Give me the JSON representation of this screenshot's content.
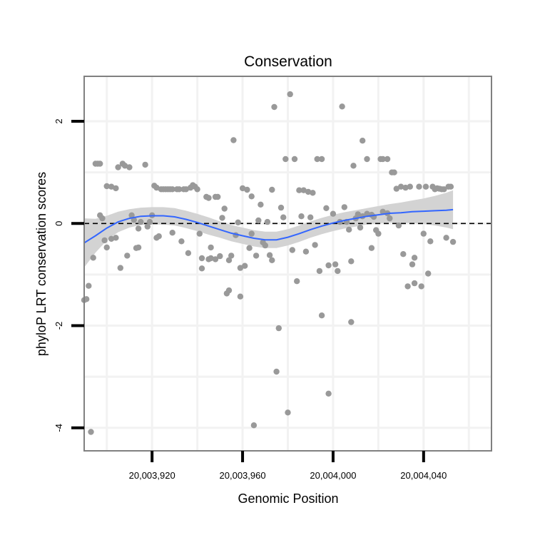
{
  "chart_data": {
    "type": "scatter",
    "title": "Conservation",
    "xlabel": "Genomic Position",
    "ylabel": "phyloP LRT conservation scores",
    "xlim": [
      20003890,
      20004070
    ],
    "ylim": [
      -4.45,
      2.88
    ],
    "x_ticks": [
      20003920,
      20003960,
      20004000,
      20004040
    ],
    "x_tick_labels": [
      "20,003,920",
      "20,003,960",
      "20,004,000",
      "20,004,040"
    ],
    "y_ticks": [
      -4,
      -2,
      0,
      2
    ],
    "y_tick_labels": [
      "-4",
      "-2",
      "0",
      "2"
    ],
    "reference_line": {
      "y": 0,
      "style": "dashed",
      "color": "#000000"
    },
    "colors": {
      "points": "#999999",
      "smooth_line": "#3366ff",
      "ribbon": "#d3d3d3",
      "panel_border": "#808080",
      "grid": "#f2f2f2"
    },
    "points": [
      [
        20003890,
        -1.5
      ],
      [
        20003891,
        -1.48
      ],
      [
        20003892,
        -1.22
      ],
      [
        20003893,
        -4.08
      ],
      [
        20003894,
        -0.67
      ],
      [
        20003895,
        1.17
      ],
      [
        20003896,
        1.17
      ],
      [
        20003897,
        1.17
      ],
      [
        20003897,
        0.16
      ],
      [
        20003898,
        0.1
      ],
      [
        20003899,
        -0.33
      ],
      [
        20003900,
        0.73
      ],
      [
        20003900,
        -0.47
      ],
      [
        20003902,
        0.72
      ],
      [
        20003902,
        -0.3
      ],
      [
        20003904,
        0.69
      ],
      [
        20003904,
        -0.28
      ],
      [
        20003905,
        1.1
      ],
      [
        20003906,
        -0.87
      ],
      [
        20003907,
        1.17
      ],
      [
        20003908,
        1.13
      ],
      [
        20003909,
        -0.63
      ],
      [
        20003910,
        1.1
      ],
      [
        20003911,
        0.16
      ],
      [
        20003912,
        0.07
      ],
      [
        20003913,
        -0.48
      ],
      [
        20003914,
        -0.47
      ],
      [
        20003914,
        -0.1
      ],
      [
        20003915,
        0.03
      ],
      [
        20003917,
        1.15
      ],
      [
        20003918,
        -0.06
      ],
      [
        20003919,
        0.03
      ],
      [
        20003920,
        0.16
      ],
      [
        20003921,
        0.74
      ],
      [
        20003922,
        0.7
      ],
      [
        20003922,
        -0.28
      ],
      [
        20003923,
        -0.25
      ],
      [
        20003924,
        0.67
      ],
      [
        20003925,
        0.67
      ],
      [
        20003926,
        0.67
      ],
      [
        20003927,
        0.67
      ],
      [
        20003928,
        0.67
      ],
      [
        20003929,
        0.67
      ],
      [
        20003929,
        -0.18
      ],
      [
        20003931,
        0.67
      ],
      [
        20003932,
        0.67
      ],
      [
        20003933,
        -0.35
      ],
      [
        20003934,
        0.67
      ],
      [
        20003935,
        0.67
      ],
      [
        20003936,
        -0.58
      ],
      [
        20003937,
        0.7
      ],
      [
        20003938,
        0.75
      ],
      [
        20003939,
        0.72
      ],
      [
        20003940,
        0.67
      ],
      [
        20003941,
        -0.2
      ],
      [
        20003942,
        -0.68
      ],
      [
        20003942,
        -0.88
      ],
      [
        20003944,
        0.52
      ],
      [
        20003945,
        0.5
      ],
      [
        20003945,
        -0.7
      ],
      [
        20003946,
        -0.47
      ],
      [
        20003946,
        -0.68
      ],
      [
        20003948,
        0.52
      ],
      [
        20003948,
        -0.7
      ],
      [
        20003949,
        0.52
      ],
      [
        20003950,
        -0.64
      ],
      [
        20003951,
        0.11
      ],
      [
        20003952,
        0.29
      ],
      [
        20003953,
        -1.37
      ],
      [
        20003954,
        -0.72
      ],
      [
        20003954,
        -1.31
      ],
      [
        20003955,
        -0.63
      ],
      [
        20003956,
        1.63
      ],
      [
        20003957,
        -0.23
      ],
      [
        20003958,
        0.02
      ],
      [
        20003959,
        -1.43
      ],
      [
        20003959,
        -0.87
      ],
      [
        20003960,
        0.69
      ],
      [
        20003961,
        -0.83
      ],
      [
        20003962,
        0.66
      ],
      [
        20003963,
        -0.48
      ],
      [
        20003964,
        -0.2
      ],
      [
        20003964,
        0.53
      ],
      [
        20003965,
        -3.95
      ],
      [
        20003966,
        -0.63
      ],
      [
        20003967,
        0.06
      ],
      [
        20003968,
        0.37
      ],
      [
        20003969,
        -0.37
      ],
      [
        20003970,
        -0.43
      ],
      [
        20003971,
        0.03
      ],
      [
        20003972,
        -0.62
      ],
      [
        20003973,
        0.66
      ],
      [
        20003973,
        -0.72
      ],
      [
        20003974,
        2.28
      ],
      [
        20003975,
        -2.9
      ],
      [
        20003976,
        -2.05
      ],
      [
        20003977,
        0.31
      ],
      [
        20003978,
        0.12
      ],
      [
        20003979,
        1.26
      ],
      [
        20003980,
        -3.7
      ],
      [
        20003981,
        2.53
      ],
      [
        20003982,
        -0.52
      ],
      [
        20003983,
        1.26
      ],
      [
        20003984,
        -1.13
      ],
      [
        20003985,
        0.65
      ],
      [
        20003986,
        0.14
      ],
      [
        20003987,
        0.65
      ],
      [
        20003988,
        -0.55
      ],
      [
        20003989,
        0.62
      ],
      [
        20003990,
        0.12
      ],
      [
        20003991,
        0.6
      ],
      [
        20003992,
        -0.42
      ],
      [
        20003993,
        1.26
      ],
      [
        20003994,
        -0.93
      ],
      [
        20003995,
        1.26
      ],
      [
        20003995,
        -1.8
      ],
      [
        20003997,
        0.3
      ],
      [
        20003998,
        -3.33
      ],
      [
        20003998,
        -0.82
      ],
      [
        20004000,
        0.19
      ],
      [
        20004001,
        -0.8
      ],
      [
        20004002,
        -0.93
      ],
      [
        20004003,
        0.03
      ],
      [
        20004004,
        2.29
      ],
      [
        20004005,
        0.32
      ],
      [
        20004006,
        0.03
      ],
      [
        20004007,
        -0.12
      ],
      [
        20004008,
        -0.74
      ],
      [
        20004008,
        -1.93
      ],
      [
        20004009,
        1.13
      ],
      [
        20004010,
        0.1
      ],
      [
        20004011,
        0.18
      ],
      [
        20004012,
        -0.08
      ],
      [
        20004013,
        1.62
      ],
      [
        20004013,
        0.14
      ],
      [
        20004015,
        0.19
      ],
      [
        20004015,
        1.26
      ],
      [
        20004017,
        -0.48
      ],
      [
        20004017,
        0.17
      ],
      [
        20004018,
        0.13
      ],
      [
        20004019,
        -0.13
      ],
      [
        20004020,
        -0.2
      ],
      [
        20004021,
        1.26
      ],
      [
        20004022,
        0.23
      ],
      [
        20004022,
        1.26
      ],
      [
        20004024,
        0.2
      ],
      [
        20004024,
        1.26
      ],
      [
        20004025,
        0.1
      ],
      [
        20004026,
        1.0
      ],
      [
        20004027,
        1.0
      ],
      [
        20004028,
        0.68
      ],
      [
        20004029,
        -0.04
      ],
      [
        20004030,
        0.72
      ],
      [
        20004031,
        -0.6
      ],
      [
        20004032,
        0.7
      ],
      [
        20004033,
        -1.23
      ],
      [
        20004034,
        0.72
      ],
      [
        20004035,
        -0.8
      ],
      [
        20004036,
        -1.17
      ],
      [
        20004036,
        -0.67
      ],
      [
        20004038,
        0.72
      ],
      [
        20004039,
        -1.23
      ],
      [
        20004040,
        -0.2
      ],
      [
        20004041,
        0.72
      ],
      [
        20004042,
        -0.98
      ],
      [
        20004043,
        -0.35
      ],
      [
        20004044,
        0.72
      ],
      [
        20004045,
        0.67
      ],
      [
        20004046,
        0.69
      ],
      [
        20004047,
        0.68
      ],
      [
        20004048,
        0.67
      ],
      [
        20004049,
        0.67
      ],
      [
        20004050,
        -0.28
      ],
      [
        20004051,
        0.72
      ],
      [
        20004052,
        0.72
      ],
      [
        20004053,
        -0.36
      ]
    ],
    "smooth_fit": [
      [
        20003890,
        -0.38
      ],
      [
        20003895,
        -0.24
      ],
      [
        20003900,
        -0.09
      ],
      [
        20003905,
        0.03
      ],
      [
        20003910,
        0.1
      ],
      [
        20003915,
        0.14
      ],
      [
        20003920,
        0.15
      ],
      [
        20003925,
        0.15
      ],
      [
        20003930,
        0.13
      ],
      [
        20003935,
        0.08
      ],
      [
        20003940,
        0.02
      ],
      [
        20003945,
        -0.05
      ],
      [
        20003950,
        -0.12
      ],
      [
        20003955,
        -0.19
      ],
      [
        20003960,
        -0.24
      ],
      [
        20003965,
        -0.29
      ],
      [
        20003970,
        -0.32
      ],
      [
        20003975,
        -0.32
      ],
      [
        20003980,
        -0.27
      ],
      [
        20003985,
        -0.2
      ],
      [
        20003990,
        -0.12
      ],
      [
        20003995,
        -0.05
      ],
      [
        20004000,
        0.01
      ],
      [
        20004005,
        0.06
      ],
      [
        20004010,
        0.1
      ],
      [
        20004015,
        0.14
      ],
      [
        20004020,
        0.17
      ],
      [
        20004025,
        0.2
      ],
      [
        20004030,
        0.21
      ],
      [
        20004035,
        0.23
      ],
      [
        20004040,
        0.24
      ],
      [
        20004045,
        0.25
      ],
      [
        20004050,
        0.26
      ],
      [
        20004053,
        0.27
      ]
    ],
    "ribbon_halfwidth": [
      0.48,
      0.33,
      0.24,
      0.2,
      0.18,
      0.17,
      0.17,
      0.17,
      0.17,
      0.17,
      0.17,
      0.17,
      0.16,
      0.16,
      0.16,
      0.16,
      0.16,
      0.16,
      0.16,
      0.16,
      0.16,
      0.16,
      0.16,
      0.16,
      0.16,
      0.16,
      0.17,
      0.18,
      0.2,
      0.22,
      0.25,
      0.29,
      0.34,
      0.38
    ]
  }
}
